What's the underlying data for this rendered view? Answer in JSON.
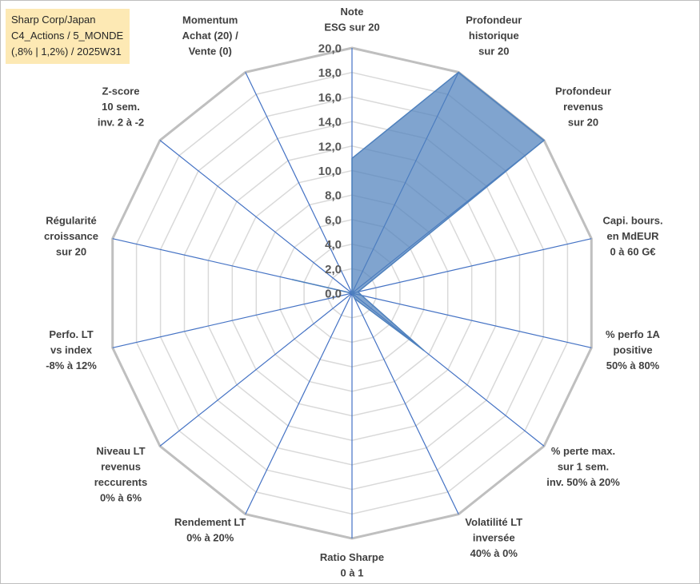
{
  "title_lines": [
    "Sharp Corp/Japan",
    "C4_Actions / 5_MONDE",
    "(,8% | 1,2%) / 2025W31"
  ],
  "chart_data": {
    "type": "radar",
    "rmin": 0,
    "rmax": 20,
    "ticks": [
      "0,0",
      "2,0",
      "4,0",
      "6,0",
      "8,0",
      "10,0",
      "12,0",
      "14,0",
      "16,0",
      "18,0",
      "20,0"
    ],
    "axes": [
      {
        "label_lines": [
          "Note",
          "ESG sur 20"
        ]
      },
      {
        "label_lines": [
          "Profondeur",
          "historique",
          "sur 20"
        ]
      },
      {
        "label_lines": [
          "Profondeur",
          "revenus",
          "sur 20"
        ]
      },
      {
        "label_lines": [
          "Capi. bours.",
          "en MdEUR",
          "0 à 60 G€"
        ]
      },
      {
        "label_lines": [
          "% perfo 1A",
          "positive",
          "50% à 80%"
        ]
      },
      {
        "label_lines": [
          "% perte max.",
          "sur 1 sem.",
          "inv. 50% à 20%"
        ]
      },
      {
        "label_lines": [
          "Volatilité LT",
          "inversée",
          "40% à 0%"
        ]
      },
      {
        "label_lines": [
          "Ratio Sharpe",
          "0 à 1"
        ]
      },
      {
        "label_lines": [
          "Rendement LT",
          "0% à 20%"
        ]
      },
      {
        "label_lines": [
          "Niveau LT",
          "revenus",
          "reccurents",
          "0% à 6%"
        ]
      },
      {
        "label_lines": [
          "Perfo. LT",
          "vs index",
          "-8% à 12%"
        ]
      },
      {
        "label_lines": [
          "Régularité",
          "croissance",
          "sur 20"
        ]
      },
      {
        "label_lines": [
          "Z-score",
          "10 sem.",
          "inv. 2 à -2"
        ]
      },
      {
        "label_lines": [
          "Momentum",
          "Achat (20) /",
          "Vente (0)"
        ]
      }
    ],
    "series": [
      {
        "values": [
          11.0,
          20.0,
          20.0,
          0.5,
          0.8,
          7.5,
          0.5,
          0.0,
          0.0,
          0.0,
          0.0,
          5.0,
          0.0,
          0.0
        ],
        "color": "#4f81bd"
      }
    ],
    "grid": true,
    "legend": "none"
  }
}
